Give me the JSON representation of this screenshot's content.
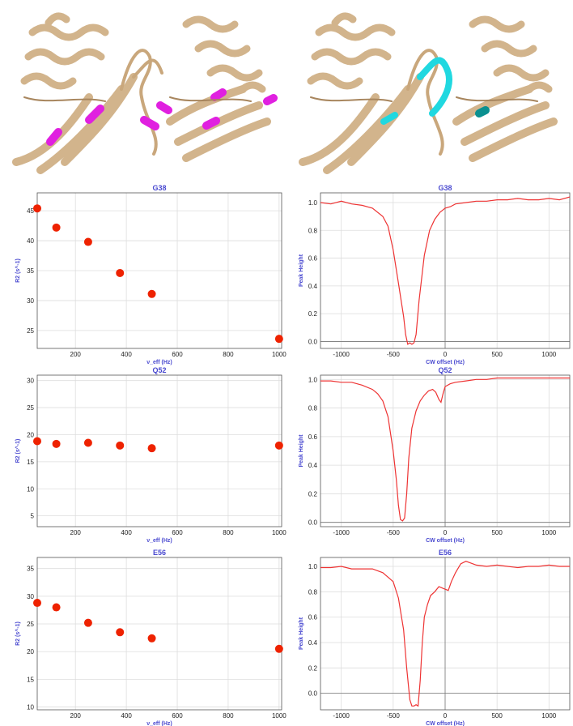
{
  "colors": {
    "ribbon": "#d2b48c",
    "ribbon_dark": "#a8865e",
    "highlight_left": "#e020e0",
    "highlight_right": "#20d8e0",
    "highlight_right_dark": "#0a9090",
    "point": "#ee2200",
    "line": "#ee3333",
    "grid": "#dddddd",
    "title": "#4a4ad0"
  },
  "chart_data": [
    {
      "type": "scatter",
      "title": "G38",
      "xlabel": "ν_eff (Hz)",
      "ylabel": "R2 (s^-1)",
      "xlim": [
        50,
        1010
      ],
      "ylim": [
        22,
        48
      ],
      "xticks": [
        200,
        400,
        600,
        800,
        1000
      ],
      "yticks": [
        25,
        30,
        35,
        40,
        45
      ],
      "grid": true,
      "x": [
        50,
        125,
        250,
        375,
        500,
        1000
      ],
      "y": [
        45.4,
        42.2,
        39.8,
        34.6,
        31.1,
        23.6
      ]
    },
    {
      "type": "line",
      "title": "G38",
      "xlabel": "CW offset (Hz)",
      "ylabel": "Peak Height",
      "xlim": [
        -1200,
        1200
      ],
      "ylim": [
        -0.05,
        1.07
      ],
      "xticks": [
        -1000,
        -500,
        0,
        500,
        1000
      ],
      "yticks": [
        0.0,
        0.2,
        0.4,
        0.6,
        0.8,
        1.0
      ],
      "grid": true,
      "x": [
        -1200,
        -1100,
        -1000,
        -900,
        -800,
        -700,
        -600,
        -550,
        -500,
        -450,
        -400,
        -380,
        -360,
        -340,
        -320,
        -300,
        -280,
        -250,
        -200,
        -150,
        -100,
        -50,
        0,
        50,
        100,
        200,
        300,
        400,
        500,
        600,
        700,
        800,
        900,
        1000,
        1100,
        1200
      ],
      "y": [
        1.0,
        0.99,
        1.01,
        0.99,
        0.98,
        0.96,
        0.9,
        0.83,
        0.66,
        0.42,
        0.18,
        0.05,
        -0.02,
        -0.01,
        -0.02,
        -0.01,
        0.05,
        0.3,
        0.62,
        0.8,
        0.88,
        0.93,
        0.96,
        0.97,
        0.99,
        1.0,
        1.01,
        1.01,
        1.02,
        1.02,
        1.03,
        1.02,
        1.02,
        1.03,
        1.02,
        1.04
      ]
    },
    {
      "type": "scatter",
      "title": "Q52",
      "xlabel": "ν_eff (Hz)",
      "ylabel": "R2 (s^-1)",
      "xlim": [
        50,
        1010
      ],
      "ylim": [
        3,
        31
      ],
      "xticks": [
        200,
        400,
        600,
        800,
        1000
      ],
      "yticks": [
        5,
        10,
        15,
        20,
        25,
        30
      ],
      "grid": true,
      "x": [
        50,
        125,
        250,
        375,
        500,
        1000
      ],
      "y": [
        18.8,
        18.3,
        18.5,
        18.0,
        17.5,
        18.0
      ]
    },
    {
      "type": "line",
      "title": "Q52",
      "xlabel": "CW offset (Hz)",
      "ylabel": "Peak Height",
      "xlim": [
        -1200,
        1200
      ],
      "ylim": [
        -0.03,
        1.03
      ],
      "xticks": [
        -1000,
        -500,
        0,
        500,
        1000
      ],
      "yticks": [
        0.0,
        0.2,
        0.4,
        0.6,
        0.8,
        1.0
      ],
      "grid": true,
      "x": [
        -1200,
        -1100,
        -1000,
        -900,
        -800,
        -700,
        -650,
        -600,
        -550,
        -500,
        -470,
        -450,
        -430,
        -410,
        -390,
        -370,
        -350,
        -320,
        -280,
        -240,
        -200,
        -160,
        -120,
        -90,
        -60,
        -40,
        -20,
        0,
        50,
        100,
        200,
        300,
        400,
        500,
        600,
        700,
        800,
        900,
        1000,
        1100,
        1200
      ],
      "y": [
        0.99,
        0.99,
        0.98,
        0.98,
        0.96,
        0.93,
        0.9,
        0.85,
        0.74,
        0.5,
        0.3,
        0.12,
        0.02,
        0.01,
        0.03,
        0.2,
        0.45,
        0.66,
        0.78,
        0.85,
        0.89,
        0.92,
        0.93,
        0.91,
        0.86,
        0.84,
        0.9,
        0.95,
        0.97,
        0.98,
        0.99,
        1.0,
        1.0,
        1.01,
        1.01,
        1.01,
        1.01,
        1.01,
        1.01,
        1.01,
        1.01
      ]
    },
    {
      "type": "scatter",
      "title": "E56",
      "xlabel": "ν_eff (Hz)",
      "ylabel": "R2 (s^-1)",
      "xlim": [
        50,
        1010
      ],
      "ylim": [
        9.5,
        37
      ],
      "xticks": [
        200,
        400,
        600,
        800,
        1000
      ],
      "yticks": [
        10,
        15,
        20,
        25,
        30,
        35
      ],
      "grid": true,
      "x": [
        50,
        125,
        250,
        375,
        500,
        1000
      ],
      "y": [
        28.8,
        28.0,
        25.2,
        23.5,
        22.4,
        20.5
      ]
    },
    {
      "type": "line",
      "title": "E56",
      "xlabel": "CW offset (Hz)",
      "ylabel": "Peak Height",
      "xlim": [
        -1200,
        1200
      ],
      "ylim": [
        -0.13,
        1.07
      ],
      "xticks": [
        -1000,
        -500,
        0,
        500,
        1000
      ],
      "yticks": [
        0.0,
        0.2,
        0.4,
        0.6,
        0.8,
        1.0
      ],
      "grid": true,
      "x": [
        -1200,
        -1100,
        -1000,
        -900,
        -800,
        -700,
        -600,
        -500,
        -450,
        -400,
        -370,
        -340,
        -320,
        -300,
        -280,
        -260,
        -240,
        -220,
        -200,
        -170,
        -140,
        -100,
        -60,
        -30,
        0,
        30,
        60,
        100,
        150,
        200,
        300,
        400,
        500,
        600,
        700,
        800,
        900,
        1000,
        1100,
        1200
      ],
      "y": [
        0.99,
        0.99,
        1.0,
        0.98,
        0.98,
        0.98,
        0.95,
        0.88,
        0.75,
        0.5,
        0.2,
        -0.05,
        -0.1,
        -0.1,
        -0.09,
        -0.1,
        0.1,
        0.4,
        0.6,
        0.7,
        0.77,
        0.8,
        0.84,
        0.83,
        0.82,
        0.81,
        0.88,
        0.95,
        1.02,
        1.04,
        1.01,
        1.0,
        1.01,
        1.0,
        0.99,
        1.0,
        1.0,
        1.01,
        1.0,
        1.0
      ]
    }
  ]
}
